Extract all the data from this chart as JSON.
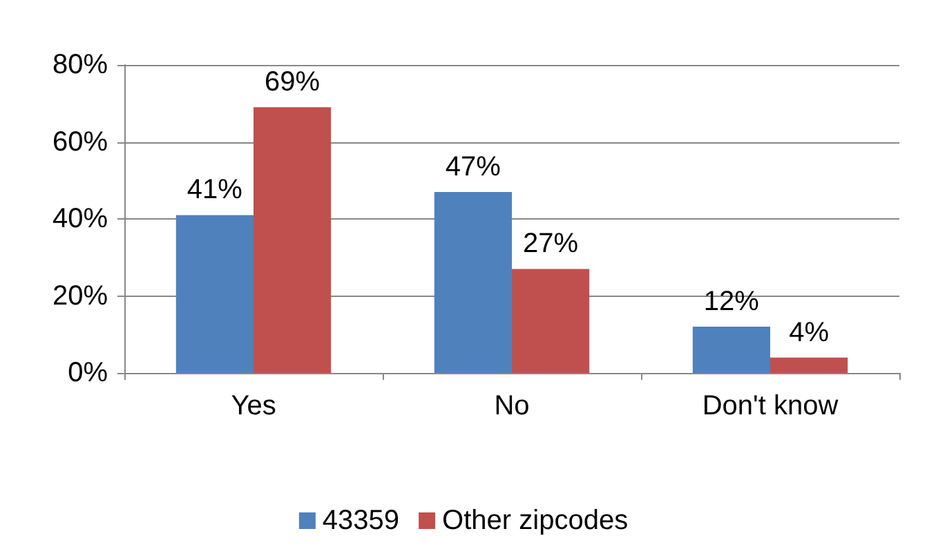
{
  "chart_data": {
    "type": "bar",
    "categories": [
      "Yes",
      "No",
      "Don't know"
    ],
    "series": [
      {
        "name": "43359",
        "color": "#4f81bd",
        "values": [
          41,
          47,
          12
        ],
        "value_labels": [
          "41%",
          "47%",
          "12%"
        ]
      },
      {
        "name": "Other zipcodes",
        "color": "#c0504d",
        "values": [
          69,
          27,
          4
        ],
        "value_labels": [
          "69%",
          "27%",
          "4%"
        ]
      }
    ],
    "ylim": [
      0,
      80
    ],
    "yticks": [
      {
        "value": 0,
        "label": "0%"
      },
      {
        "value": 20,
        "label": "20%"
      },
      {
        "value": 40,
        "label": "40%"
      },
      {
        "value": 60,
        "label": "60%"
      },
      {
        "value": 80,
        "label": "80%"
      }
    ],
    "grid": "y",
    "legend": "bottom"
  }
}
